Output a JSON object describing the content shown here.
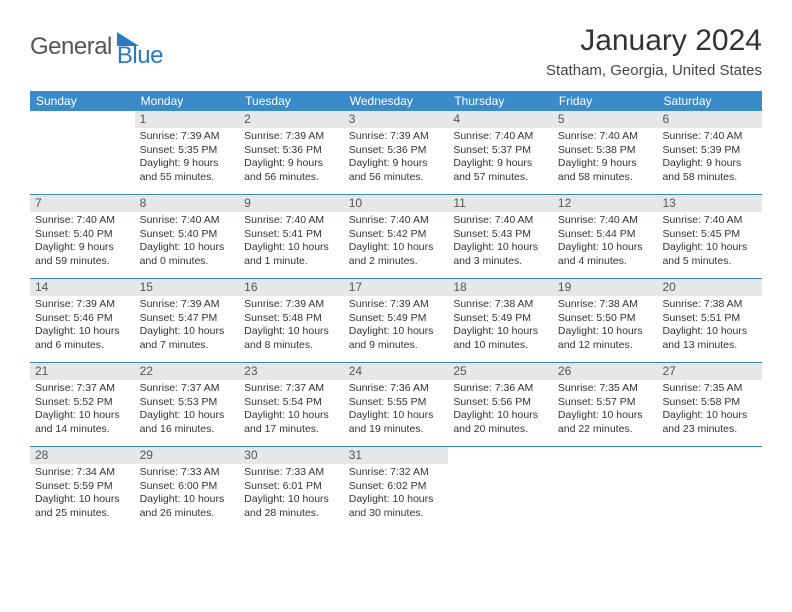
{
  "logo": {
    "part1": "General",
    "part2": "Blue"
  },
  "title": "January 2024",
  "location": "Statham, Georgia, United States",
  "colors": {
    "header_bg": "#3a8bc9",
    "daynum_bg": "#e5e7e9",
    "accent": "#2b7ac0",
    "border": "#3a8bc9"
  },
  "day_names": [
    "Sunday",
    "Monday",
    "Tuesday",
    "Wednesday",
    "Thursday",
    "Friday",
    "Saturday"
  ],
  "weeks": [
    [
      {
        "n": "",
        "sr": "",
        "ss": "",
        "dl": ""
      },
      {
        "n": "1",
        "sr": "Sunrise: 7:39 AM",
        "ss": "Sunset: 5:35 PM",
        "dl": "Daylight: 9 hours and 55 minutes."
      },
      {
        "n": "2",
        "sr": "Sunrise: 7:39 AM",
        "ss": "Sunset: 5:36 PM",
        "dl": "Daylight: 9 hours and 56 minutes."
      },
      {
        "n": "3",
        "sr": "Sunrise: 7:39 AM",
        "ss": "Sunset: 5:36 PM",
        "dl": "Daylight: 9 hours and 56 minutes."
      },
      {
        "n": "4",
        "sr": "Sunrise: 7:40 AM",
        "ss": "Sunset: 5:37 PM",
        "dl": "Daylight: 9 hours and 57 minutes."
      },
      {
        "n": "5",
        "sr": "Sunrise: 7:40 AM",
        "ss": "Sunset: 5:38 PM",
        "dl": "Daylight: 9 hours and 58 minutes."
      },
      {
        "n": "6",
        "sr": "Sunrise: 7:40 AM",
        "ss": "Sunset: 5:39 PM",
        "dl": "Daylight: 9 hours and 58 minutes."
      }
    ],
    [
      {
        "n": "7",
        "sr": "Sunrise: 7:40 AM",
        "ss": "Sunset: 5:40 PM",
        "dl": "Daylight: 9 hours and 59 minutes."
      },
      {
        "n": "8",
        "sr": "Sunrise: 7:40 AM",
        "ss": "Sunset: 5:40 PM",
        "dl": "Daylight: 10 hours and 0 minutes."
      },
      {
        "n": "9",
        "sr": "Sunrise: 7:40 AM",
        "ss": "Sunset: 5:41 PM",
        "dl": "Daylight: 10 hours and 1 minute."
      },
      {
        "n": "10",
        "sr": "Sunrise: 7:40 AM",
        "ss": "Sunset: 5:42 PM",
        "dl": "Daylight: 10 hours and 2 minutes."
      },
      {
        "n": "11",
        "sr": "Sunrise: 7:40 AM",
        "ss": "Sunset: 5:43 PM",
        "dl": "Daylight: 10 hours and 3 minutes."
      },
      {
        "n": "12",
        "sr": "Sunrise: 7:40 AM",
        "ss": "Sunset: 5:44 PM",
        "dl": "Daylight: 10 hours and 4 minutes."
      },
      {
        "n": "13",
        "sr": "Sunrise: 7:40 AM",
        "ss": "Sunset: 5:45 PM",
        "dl": "Daylight: 10 hours and 5 minutes."
      }
    ],
    [
      {
        "n": "14",
        "sr": "Sunrise: 7:39 AM",
        "ss": "Sunset: 5:46 PM",
        "dl": "Daylight: 10 hours and 6 minutes."
      },
      {
        "n": "15",
        "sr": "Sunrise: 7:39 AM",
        "ss": "Sunset: 5:47 PM",
        "dl": "Daylight: 10 hours and 7 minutes."
      },
      {
        "n": "16",
        "sr": "Sunrise: 7:39 AM",
        "ss": "Sunset: 5:48 PM",
        "dl": "Daylight: 10 hours and 8 minutes."
      },
      {
        "n": "17",
        "sr": "Sunrise: 7:39 AM",
        "ss": "Sunset: 5:49 PM",
        "dl": "Daylight: 10 hours and 9 minutes."
      },
      {
        "n": "18",
        "sr": "Sunrise: 7:38 AM",
        "ss": "Sunset: 5:49 PM",
        "dl": "Daylight: 10 hours and 10 minutes."
      },
      {
        "n": "19",
        "sr": "Sunrise: 7:38 AM",
        "ss": "Sunset: 5:50 PM",
        "dl": "Daylight: 10 hours and 12 minutes."
      },
      {
        "n": "20",
        "sr": "Sunrise: 7:38 AM",
        "ss": "Sunset: 5:51 PM",
        "dl": "Daylight: 10 hours and 13 minutes."
      }
    ],
    [
      {
        "n": "21",
        "sr": "Sunrise: 7:37 AM",
        "ss": "Sunset: 5:52 PM",
        "dl": "Daylight: 10 hours and 14 minutes."
      },
      {
        "n": "22",
        "sr": "Sunrise: 7:37 AM",
        "ss": "Sunset: 5:53 PM",
        "dl": "Daylight: 10 hours and 16 minutes."
      },
      {
        "n": "23",
        "sr": "Sunrise: 7:37 AM",
        "ss": "Sunset: 5:54 PM",
        "dl": "Daylight: 10 hours and 17 minutes."
      },
      {
        "n": "24",
        "sr": "Sunrise: 7:36 AM",
        "ss": "Sunset: 5:55 PM",
        "dl": "Daylight: 10 hours and 19 minutes."
      },
      {
        "n": "25",
        "sr": "Sunrise: 7:36 AM",
        "ss": "Sunset: 5:56 PM",
        "dl": "Daylight: 10 hours and 20 minutes."
      },
      {
        "n": "26",
        "sr": "Sunrise: 7:35 AM",
        "ss": "Sunset: 5:57 PM",
        "dl": "Daylight: 10 hours and 22 minutes."
      },
      {
        "n": "27",
        "sr": "Sunrise: 7:35 AM",
        "ss": "Sunset: 5:58 PM",
        "dl": "Daylight: 10 hours and 23 minutes."
      }
    ],
    [
      {
        "n": "28",
        "sr": "Sunrise: 7:34 AM",
        "ss": "Sunset: 5:59 PM",
        "dl": "Daylight: 10 hours and 25 minutes."
      },
      {
        "n": "29",
        "sr": "Sunrise: 7:33 AM",
        "ss": "Sunset: 6:00 PM",
        "dl": "Daylight: 10 hours and 26 minutes."
      },
      {
        "n": "30",
        "sr": "Sunrise: 7:33 AM",
        "ss": "Sunset: 6:01 PM",
        "dl": "Daylight: 10 hours and 28 minutes."
      },
      {
        "n": "31",
        "sr": "Sunrise: 7:32 AM",
        "ss": "Sunset: 6:02 PM",
        "dl": "Daylight: 10 hours and 30 minutes."
      },
      {
        "n": "",
        "sr": "",
        "ss": "",
        "dl": ""
      },
      {
        "n": "",
        "sr": "",
        "ss": "",
        "dl": ""
      },
      {
        "n": "",
        "sr": "",
        "ss": "",
        "dl": ""
      }
    ]
  ]
}
